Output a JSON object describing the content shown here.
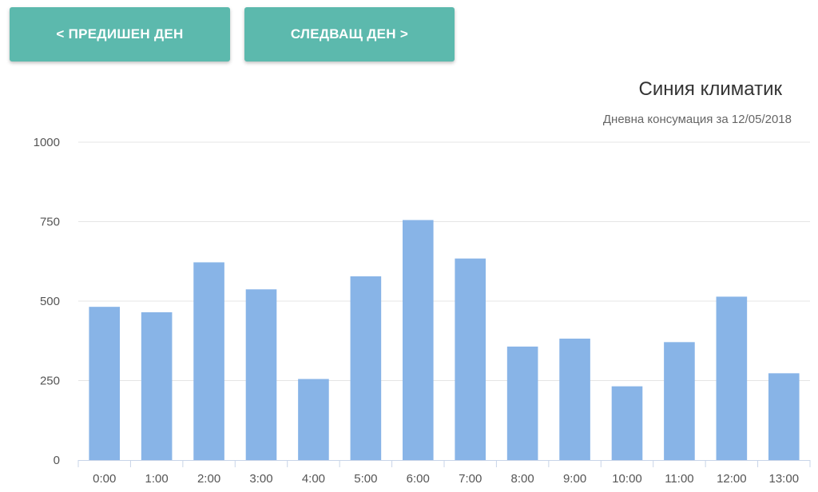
{
  "nav": {
    "prev_label": "< ПРЕДИШЕН ДЕН",
    "next_label": "СЛЕДВАЩ ДЕН >"
  },
  "colors": {
    "button_bg": "#5cb9ad",
    "bar": "#88b4e7",
    "grid": "#e5e5e5",
    "axis": "#c8d4e8"
  },
  "chart_data": {
    "type": "bar",
    "title": "Синия климатик",
    "subtitle": "Дневна консумация за 12/05/2018",
    "xlabel": "",
    "ylabel": "",
    "ylim": [
      0,
      1000
    ],
    "yticks": [
      0,
      250,
      500,
      750,
      1000
    ],
    "grid": true,
    "categories": [
      "0:00",
      "1:00",
      "2:00",
      "3:00",
      "4:00",
      "5:00",
      "6:00",
      "7:00",
      "8:00",
      "9:00",
      "10:00",
      "11:00",
      "12:00",
      "13:00"
    ],
    "values": [
      482,
      465,
      622,
      537,
      255,
      578,
      755,
      634,
      357,
      382,
      232,
      371,
      514,
      273
    ]
  }
}
